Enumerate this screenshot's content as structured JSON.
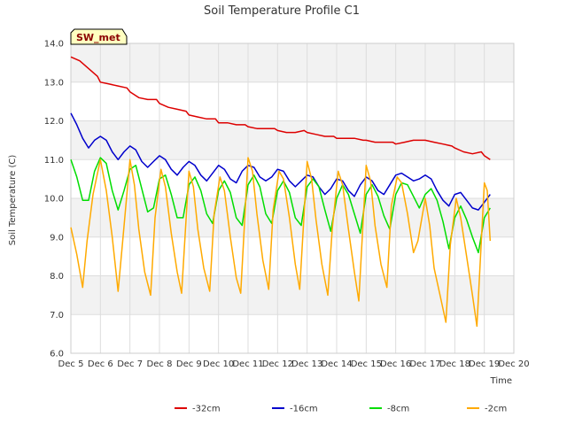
{
  "chart_data": {
    "type": "line",
    "title": "Soil Temperature Profile C1",
    "xlabel": "Time",
    "ylabel": "Soil Temperature (C)",
    "badge": "SW_met",
    "ylim": [
      6.0,
      14.0
    ],
    "xlim": [
      5,
      20
    ],
    "y_ticks": [
      "6.0",
      "7.0",
      "8.0",
      "9.0",
      "10.0",
      "11.0",
      "12.0",
      "13.0",
      "14.0"
    ],
    "x_ticks": [
      "Dec 5",
      "Dec 6",
      "Dec 7",
      "Dec 8",
      "Dec 9",
      "Dec 10",
      "Dec 11",
      "Dec 12",
      "Dec 13",
      "Dec 14",
      "Dec 15",
      "Dec 16",
      "Dec 17",
      "Dec 18",
      "Dec 19",
      "Dec 20"
    ],
    "grid": true,
    "legend_position": "bottom-center",
    "series": [
      {
        "name": "-32cm",
        "color": "#dd0000",
        "x": [
          5.0,
          5.3,
          5.6,
          5.9,
          6.0,
          6.3,
          6.6,
          6.9,
          7.0,
          7.3,
          7.6,
          7.9,
          8.0,
          8.3,
          8.6,
          8.9,
          9.0,
          9.3,
          9.6,
          9.9,
          10.0,
          10.3,
          10.6,
          10.9,
          11.0,
          11.3,
          11.6,
          11.9,
          12.0,
          12.3,
          12.6,
          12.9,
          13.0,
          13.3,
          13.6,
          13.9,
          14.0,
          14.3,
          14.6,
          14.9,
          15.0,
          15.3,
          15.6,
          15.9,
          16.0,
          16.3,
          16.6,
          16.9,
          17.0,
          17.3,
          17.6,
          17.9,
          18.0,
          18.3,
          18.6,
          18.9,
          19.0,
          19.2
        ],
        "y": [
          13.65,
          13.55,
          13.35,
          13.15,
          13.0,
          12.95,
          12.9,
          12.85,
          12.75,
          12.6,
          12.55,
          12.55,
          12.45,
          12.35,
          12.3,
          12.25,
          12.15,
          12.1,
          12.05,
          12.05,
          11.95,
          11.95,
          11.9,
          11.9,
          11.85,
          11.8,
          11.8,
          11.8,
          11.75,
          11.7,
          11.7,
          11.75,
          11.7,
          11.65,
          11.6,
          11.6,
          11.55,
          11.55,
          11.55,
          11.5,
          11.5,
          11.45,
          11.45,
          11.45,
          11.4,
          11.45,
          11.5,
          11.5,
          11.5,
          11.45,
          11.4,
          11.35,
          11.3,
          11.2,
          11.15,
          11.2,
          11.1,
          11.0
        ]
      },
      {
        "name": "-16cm",
        "color": "#0000cc",
        "x": [
          5.0,
          5.2,
          5.4,
          5.6,
          5.8,
          6.0,
          6.2,
          6.4,
          6.6,
          6.8,
          7.0,
          7.2,
          7.4,
          7.6,
          7.8,
          8.0,
          8.2,
          8.4,
          8.6,
          8.8,
          9.0,
          9.2,
          9.4,
          9.6,
          9.8,
          10.0,
          10.2,
          10.4,
          10.6,
          10.8,
          11.0,
          11.2,
          11.4,
          11.6,
          11.8,
          12.0,
          12.2,
          12.4,
          12.6,
          12.8,
          13.0,
          13.2,
          13.4,
          13.6,
          13.8,
          14.0,
          14.2,
          14.4,
          14.6,
          14.8,
          15.0,
          15.2,
          15.4,
          15.6,
          15.8,
          16.0,
          16.2,
          16.4,
          16.6,
          16.8,
          17.0,
          17.2,
          17.4,
          17.6,
          17.8,
          18.0,
          18.2,
          18.4,
          18.6,
          18.8,
          19.0,
          19.2
        ],
        "y": [
          12.2,
          11.9,
          11.55,
          11.3,
          11.5,
          11.6,
          11.5,
          11.2,
          11.0,
          11.2,
          11.35,
          11.25,
          10.95,
          10.8,
          10.95,
          11.1,
          11.0,
          10.75,
          10.6,
          10.8,
          10.95,
          10.85,
          10.6,
          10.45,
          10.65,
          10.85,
          10.75,
          10.5,
          10.4,
          10.7,
          10.85,
          10.8,
          10.55,
          10.45,
          10.55,
          10.75,
          10.7,
          10.45,
          10.3,
          10.45,
          10.6,
          10.55,
          10.3,
          10.1,
          10.25,
          10.5,
          10.45,
          10.2,
          10.05,
          10.35,
          10.55,
          10.45,
          10.2,
          10.1,
          10.35,
          10.6,
          10.65,
          10.55,
          10.45,
          10.5,
          10.6,
          10.5,
          10.2,
          9.95,
          9.8,
          10.1,
          10.15,
          9.95,
          9.75,
          9.7,
          9.9,
          10.1
        ]
      },
      {
        "name": "-8cm",
        "color": "#00dd00",
        "x": [
          5.0,
          5.2,
          5.4,
          5.6,
          5.8,
          6.0,
          6.2,
          6.4,
          6.6,
          6.8,
          7.0,
          7.2,
          7.4,
          7.6,
          7.8,
          8.0,
          8.2,
          8.4,
          8.6,
          8.8,
          9.0,
          9.2,
          9.4,
          9.6,
          9.8,
          10.0,
          10.2,
          10.4,
          10.6,
          10.8,
          11.0,
          11.2,
          11.4,
          11.6,
          11.8,
          12.0,
          12.2,
          12.4,
          12.6,
          12.8,
          13.0,
          13.2,
          13.4,
          13.6,
          13.8,
          14.0,
          14.2,
          14.4,
          14.6,
          14.8,
          15.0,
          15.2,
          15.4,
          15.6,
          15.8,
          16.0,
          16.2,
          16.4,
          16.6,
          16.8,
          17.0,
          17.2,
          17.4,
          17.6,
          17.8,
          18.0,
          18.2,
          18.4,
          18.6,
          18.8,
          19.0,
          19.2
        ],
        "y": [
          11.0,
          10.55,
          9.95,
          9.95,
          10.7,
          11.05,
          10.9,
          10.2,
          9.7,
          10.2,
          10.75,
          10.85,
          10.25,
          9.65,
          9.75,
          10.5,
          10.6,
          10.1,
          9.5,
          9.5,
          10.35,
          10.55,
          10.2,
          9.6,
          9.35,
          10.2,
          10.45,
          10.15,
          9.5,
          9.3,
          10.35,
          10.6,
          10.3,
          9.6,
          9.35,
          10.2,
          10.45,
          10.15,
          9.5,
          9.3,
          10.3,
          10.5,
          10.3,
          9.7,
          9.15,
          10.0,
          10.35,
          10.1,
          9.6,
          9.1,
          10.1,
          10.35,
          10.05,
          9.55,
          9.2,
          10.1,
          10.4,
          10.35,
          10.05,
          9.75,
          10.1,
          10.25,
          9.95,
          9.4,
          8.7,
          9.5,
          9.8,
          9.45,
          9.0,
          8.6,
          9.5,
          9.75
        ]
      },
      {
        "name": "-2cm",
        "color": "#ffaa00",
        "x": [
          5.0,
          5.2,
          5.4,
          5.55,
          5.75,
          6.0,
          6.2,
          6.4,
          6.6,
          6.75,
          7.0,
          7.15,
          7.3,
          7.5,
          7.7,
          7.85,
          8.05,
          8.2,
          8.4,
          8.6,
          8.75,
          9.0,
          9.15,
          9.3,
          9.5,
          9.7,
          9.85,
          10.05,
          10.2,
          10.4,
          10.6,
          10.75,
          11.0,
          11.15,
          11.3,
          11.5,
          11.7,
          11.85,
          12.05,
          12.2,
          12.4,
          12.6,
          12.75,
          13.0,
          13.15,
          13.3,
          13.5,
          13.7,
          13.85,
          14.05,
          14.2,
          14.4,
          14.6,
          14.75,
          15.0,
          15.15,
          15.3,
          15.5,
          15.7,
          15.85,
          16.05,
          16.2,
          16.4,
          16.6,
          16.75,
          17.0,
          17.15,
          17.3,
          17.5,
          17.7,
          17.85,
          18.05,
          18.2,
          18.4,
          18.6,
          18.75,
          19.0,
          19.1,
          19.2
        ],
        "y": [
          9.25,
          8.55,
          7.7,
          8.9,
          10.1,
          11.0,
          10.2,
          9.0,
          7.6,
          8.85,
          11.0,
          10.35,
          9.2,
          8.1,
          7.5,
          9.5,
          10.75,
          10.3,
          9.1,
          8.1,
          7.55,
          10.7,
          10.3,
          9.2,
          8.2,
          7.6,
          9.6,
          10.55,
          10.2,
          9.0,
          7.95,
          7.55,
          11.05,
          10.7,
          9.6,
          8.4,
          7.65,
          9.7,
          10.7,
          10.5,
          9.5,
          8.3,
          7.65,
          10.95,
          10.5,
          9.45,
          8.3,
          7.5,
          9.2,
          10.7,
          10.35,
          9.2,
          8.1,
          7.35,
          10.85,
          10.45,
          9.3,
          8.3,
          7.7,
          9.8,
          10.55,
          10.4,
          9.6,
          8.6,
          8.9,
          10.0,
          9.3,
          8.2,
          7.5,
          6.8,
          8.8,
          10.0,
          9.5,
          8.5,
          7.5,
          6.7,
          10.4,
          10.2,
          8.9
        ]
      }
    ]
  }
}
